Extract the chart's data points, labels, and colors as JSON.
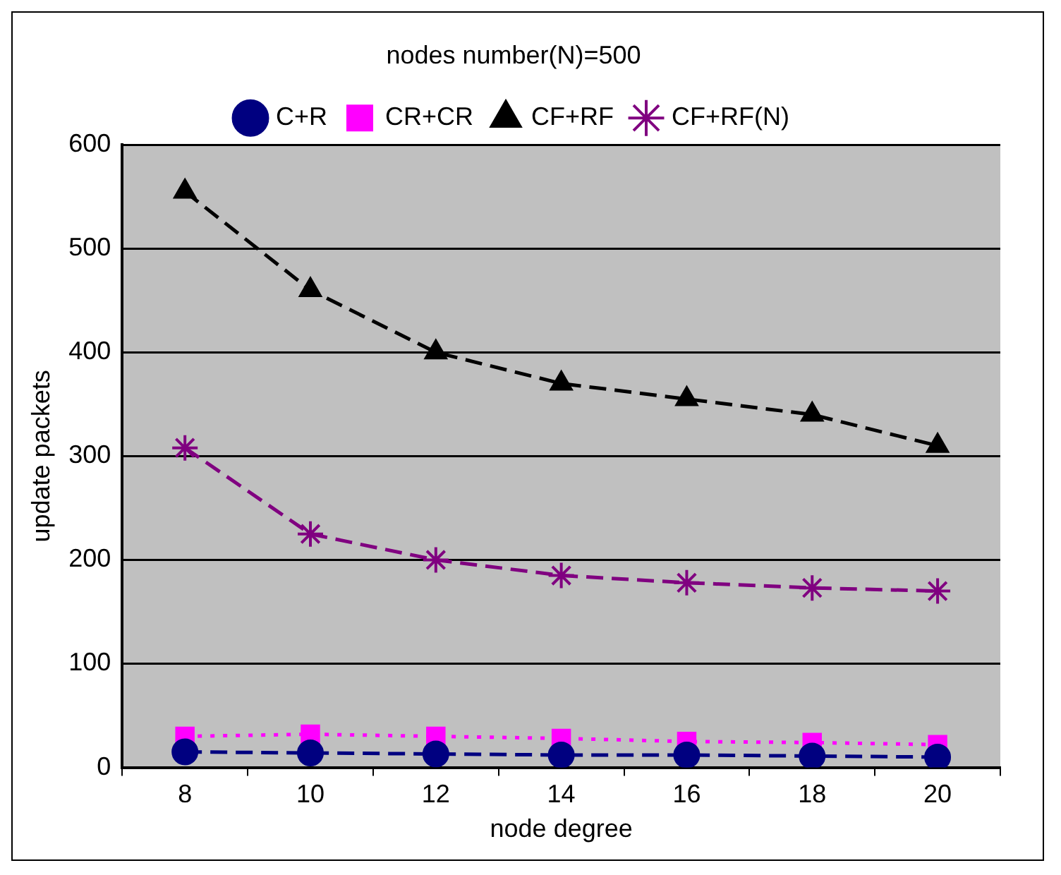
{
  "chart_data": {
    "type": "line",
    "title": "nodes number(N)=500",
    "xlabel": "node degree",
    "ylabel": "update packets",
    "categories": [
      "8",
      "10",
      "12",
      "14",
      "16",
      "18",
      "20"
    ],
    "series": [
      {
        "name": "C+R",
        "color": "#000080",
        "marker": "circle",
        "line_style": "dashed",
        "values": [
          15,
          14,
          13,
          12,
          12,
          11,
          10
        ]
      },
      {
        "name": "CR+CR",
        "color": "#ff00ff",
        "marker": "square",
        "line_style": "dotted",
        "values": [
          30,
          32,
          30,
          28,
          25,
          24,
          22
        ]
      },
      {
        "name": "CF+RF",
        "color": "#000000",
        "marker": "triangle",
        "line_style": "dashed",
        "values": [
          555,
          460,
          400,
          370,
          355,
          340,
          310
        ]
      },
      {
        "name": "CF+RF(N)",
        "color": "#800080",
        "marker": "cross",
        "line_style": "dashed",
        "values": [
          308,
          225,
          200,
          185,
          178,
          173,
          170
        ]
      }
    ],
    "ylim": [
      0,
      600
    ],
    "yticks": [
      0,
      100,
      200,
      300,
      400,
      500,
      600
    ],
    "grid": "y",
    "legend": "top"
  }
}
